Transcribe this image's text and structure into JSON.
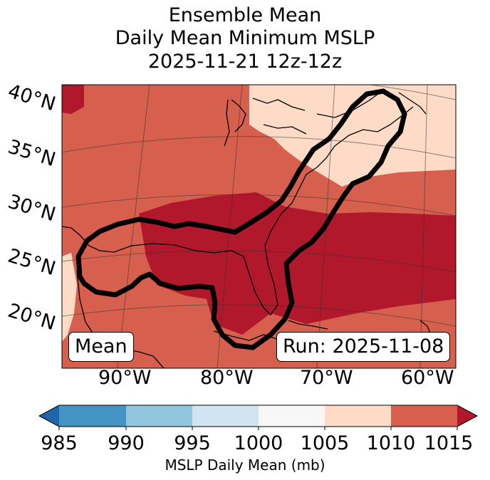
{
  "title": {
    "line1": "Ensemble Mean",
    "line2": "Daily Mean Minimum MSLP",
    "line3": "2025-11-21 12z-12z"
  },
  "map": {
    "lat_labels": [
      "40°N",
      "35°N",
      "30°N",
      "25°N",
      "20°N"
    ],
    "lon_labels": [
      "90°W",
      "80°W",
      "70°W",
      "60°W"
    ],
    "mean_label": "Mean",
    "run_label": "Run: 2025-11-08"
  },
  "colorbar": {
    "ticks": [
      "985",
      "990",
      "995",
      "1000",
      "1005",
      "1010",
      "1015"
    ],
    "label": "MSLP Daily Mean (mb)",
    "colors": {
      "under": "#2166ac",
      "c985": "#4393c3",
      "c990": "#92c5de",
      "c995": "#d1e5f0",
      "c1000": "#f7f7f7",
      "c1005": "#fddbc7",
      "c1010": "#d6604d",
      "over": "#b2182b"
    }
  }
}
